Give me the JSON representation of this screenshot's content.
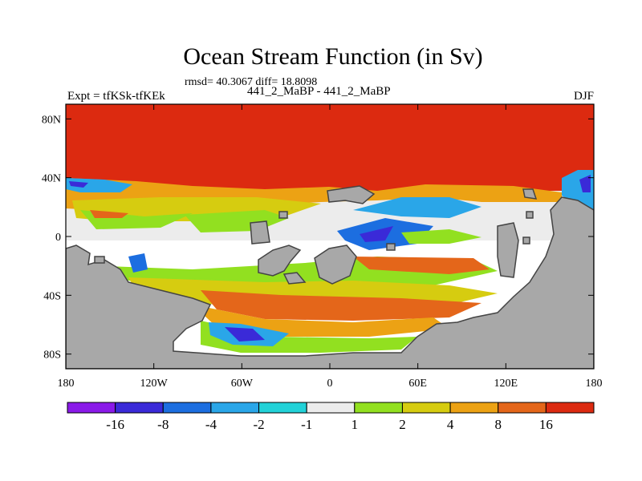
{
  "title": "Ocean Stream Function (in Sv)",
  "stats": "rmsd= 40.3067 diff= 18.8098",
  "left_label": "Expt = tfKSk-tfKEk",
  "subtitle": "441_2_MaBP - 441_2_MaBP",
  "right_label": "DJF",
  "colors": {
    "land": "#a8a8a8",
    "coast": "#444444",
    "levels": [
      "#8a1ae8",
      "#3a2ad8",
      "#1c6ee0",
      "#2aa6e8",
      "#22d2d8",
      "#ececec",
      "#92e020",
      "#d6cc10",
      "#eca214",
      "#e4661a",
      "#dc2a10"
    ]
  },
  "chart_data": {
    "type": "heatmap",
    "variable": "Ocean Stream Function",
    "units": "Sv",
    "x_ticks": [
      "180",
      "120W",
      "60W",
      "0",
      "60E",
      "120E",
      "180"
    ],
    "x_tick_values": [
      -180,
      -120,
      -60,
      0,
      60,
      120,
      180
    ],
    "y_ticks": [
      "80N",
      "40N",
      "0",
      "40S",
      "80S"
    ],
    "y_tick_values": [
      80,
      40,
      0,
      -40,
      -80
    ],
    "xlim": [
      -180,
      180
    ],
    "ylim": [
      -90,
      90
    ],
    "colorbar_labels": [
      "-16",
      "-8",
      "-4",
      "-2",
      "-1",
      "1",
      "2",
      "4",
      "8",
      "16"
    ],
    "levels": [
      -16,
      -8,
      -4,
      -2,
      -1,
      1,
      2,
      4,
      8,
      16
    ],
    "field_features": [
      {
        "region": "north of 40N",
        "value": 30
      },
      {
        "region": "tropics",
        "value": 1
      },
      {
        "region": "near 40S",
        "value": 8
      },
      {
        "region": "near 70S",
        "value": -10
      }
    ]
  }
}
